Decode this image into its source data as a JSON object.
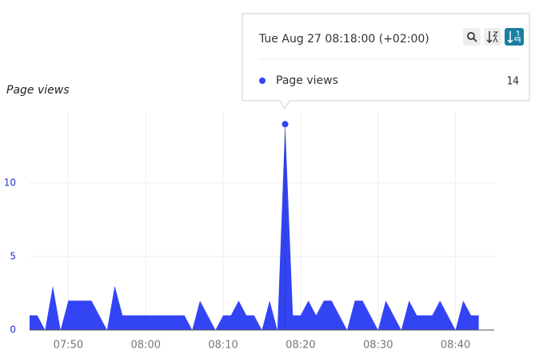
{
  "chart_data": {
    "type": "area",
    "ylabel": "Page views",
    "x": [
      "07:45",
      "07:46",
      "07:47",
      "07:48",
      "07:49",
      "07:50",
      "07:51",
      "07:52",
      "07:53",
      "07:54",
      "07:55",
      "07:56",
      "07:57",
      "07:58",
      "07:59",
      "08:00",
      "08:01",
      "08:02",
      "08:03",
      "08:04",
      "08:05",
      "08:06",
      "08:07",
      "08:08",
      "08:09",
      "08:10",
      "08:11",
      "08:12",
      "08:13",
      "08:14",
      "08:15",
      "08:16",
      "08:17",
      "08:18",
      "08:19",
      "08:20",
      "08:21",
      "08:22",
      "08:23",
      "08:24",
      "08:25",
      "08:26",
      "08:27",
      "08:28",
      "08:29",
      "08:30",
      "08:31",
      "08:32",
      "08:33",
      "08:34",
      "08:35",
      "08:36",
      "08:37",
      "08:38",
      "08:39",
      "08:40",
      "08:41",
      "08:42",
      "08:43"
    ],
    "series": [
      {
        "name": "Page views",
        "color": "#3344f5",
        "values": [
          1,
          1,
          0,
          3,
          0,
          2,
          2,
          2,
          2,
          1,
          0,
          3,
          1,
          1,
          1,
          1,
          1,
          1,
          1,
          1,
          1,
          0,
          2,
          1,
          0,
          1,
          1,
          2,
          1,
          1,
          0,
          2,
          0,
          14,
          1,
          1,
          2,
          1,
          2,
          2,
          1,
          0,
          2,
          2,
          1,
          0,
          2,
          1,
          0,
          2,
          1,
          1,
          1,
          2,
          1,
          0,
          2,
          1,
          1
        ]
      }
    ],
    "xlim": [
      "07:45",
      "08:45"
    ],
    "xticks": [
      "07:50",
      "08:00",
      "08:10",
      "08:20",
      "08:30",
      "08:40"
    ],
    "ylim": [
      0,
      15
    ],
    "yticks": [
      0,
      5,
      10
    ],
    "grid": true,
    "tooltip": {
      "title": "Tue Aug 27 08:18:00 (+02:00)",
      "index": 33
    }
  }
}
